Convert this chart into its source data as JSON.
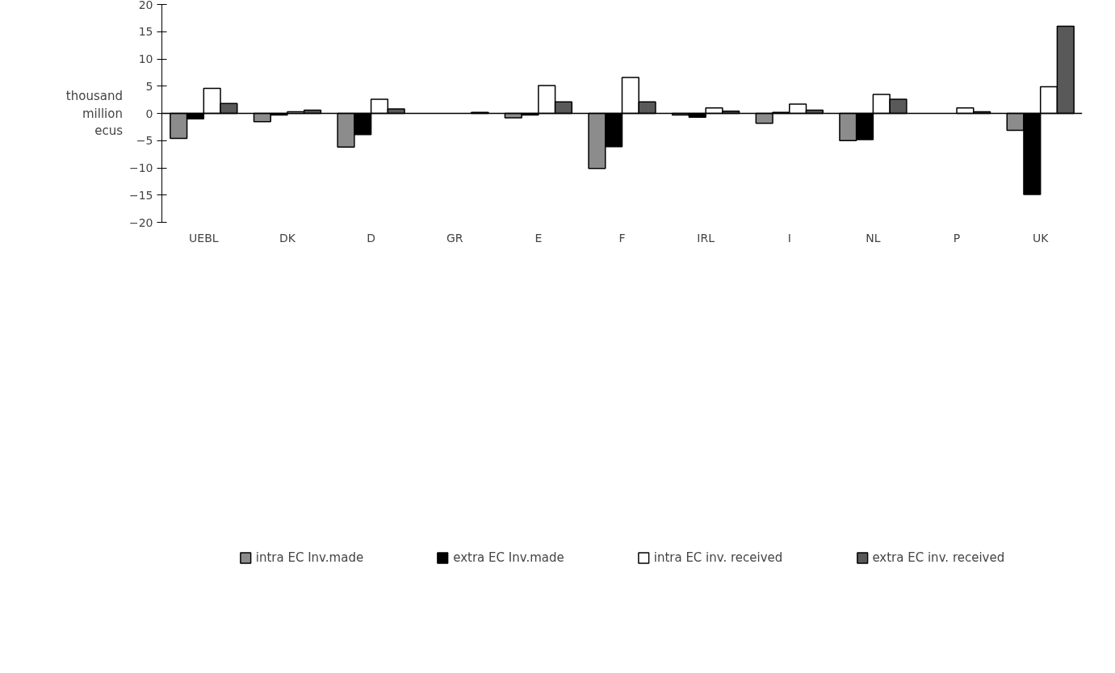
{
  "chart_data": {
    "type": "bar",
    "ylabel": "thousand\nmillion\necus",
    "categories": [
      "UEBL",
      "DK",
      "D",
      "GR",
      "E",
      "F",
      "IRL",
      "I",
      "NL",
      "P",
      "UK"
    ],
    "series": [
      {
        "name": "intra EC Inv.made",
        "color": "#8c8c8c",
        "values": [
          -4.6,
          -1.5,
          -6.2,
          null,
          -0.8,
          -10.1,
          -0.3,
          -1.8,
          -5.0,
          null,
          -3.1
        ]
      },
      {
        "name": "extra EC Inv.made",
        "color": "#000000",
        "values": [
          -1.0,
          -0.3,
          -3.9,
          null,
          -0.3,
          -6.1,
          -0.7,
          0.2,
          -4.8,
          null,
          -14.9
        ]
      },
      {
        "name": "intra EC inv. received",
        "color": "#ffffff",
        "values": [
          4.6,
          0.3,
          2.6,
          null,
          5.1,
          6.6,
          1.0,
          1.7,
          3.5,
          1.0,
          4.9
        ]
      },
      {
        "name": "extra EC inv. received",
        "color": "#595959",
        "values": [
          1.8,
          0.6,
          0.8,
          0.2,
          2.1,
          2.1,
          0.4,
          0.6,
          2.6,
          0.3,
          16.0
        ]
      }
    ],
    "ylim": [
      -20,
      20
    ],
    "yticks": [
      {
        "value": -20,
        "label": "−20"
      },
      {
        "value": -15,
        "label": "−15"
      },
      {
        "value": -10,
        "label": "−10"
      },
      {
        "value": -5,
        "label": "−5"
      },
      0,
      5,
      10,
      15,
      20
    ],
    "ref_lines": [
      {
        "axis": "y",
        "value": 0,
        "color": "#000000"
      }
    ],
    "grid": false,
    "legend": "bottom"
  }
}
